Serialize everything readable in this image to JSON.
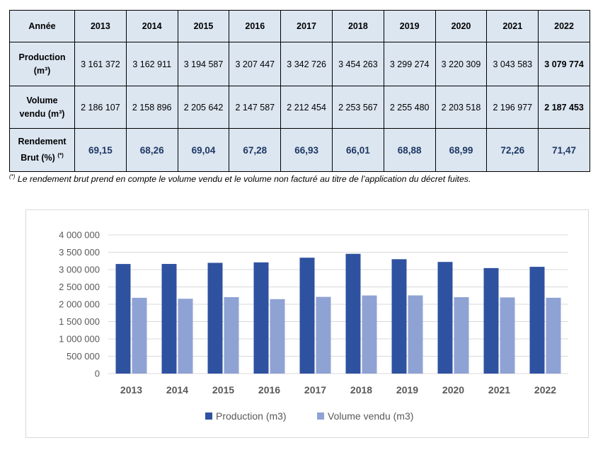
{
  "table": {
    "header_label": "Année",
    "years": [
      "2013",
      "2014",
      "2015",
      "2016",
      "2017",
      "2018",
      "2019",
      "2020",
      "2021",
      "2022"
    ],
    "rows": [
      {
        "label_line1": "Production",
        "label_line2": "(m³)",
        "values": [
          "3 161 372",
          "3 162 911",
          "3 194 587",
          "3 207 447",
          "3 342 726",
          "3 454 263",
          "3 299 274",
          "3 220 309",
          "3 043 583",
          "3 079 774"
        ]
      },
      {
        "label_line1": "Volume",
        "label_line2": "vendu (m³)",
        "values": [
          "2 186 107",
          "2 158 896",
          "2 205 642",
          "2 147 587",
          "2 212 454",
          "2 253 567",
          "2 255 480",
          "2 203 518",
          "2 196 977",
          "2 187 453"
        ]
      },
      {
        "label_line1": "Rendement",
        "label_line2": "Brut (%)",
        "label_sup": "(*)",
        "values": [
          "69,15",
          "68,26",
          "69,04",
          "67,28",
          "66,93",
          "66,01",
          "68,88",
          "68,99",
          "72,26",
          "71,47"
        ]
      }
    ]
  },
  "footnote": {
    "mark": "(*)",
    "text": " Le rendement brut prend en compte le volume vendu et le volume non facturé au titre de l’application du décret fuites."
  },
  "chart_data": {
    "type": "bar",
    "categories": [
      "2013",
      "2014",
      "2015",
      "2016",
      "2017",
      "2018",
      "2019",
      "2020",
      "2021",
      "2022"
    ],
    "series": [
      {
        "name": "Production (m3)",
        "values": [
          3161372,
          3162911,
          3194587,
          3207447,
          3342726,
          3454263,
          3299274,
          3220309,
          3043583,
          3079774
        ]
      },
      {
        "name": "Volume vendu (m3)",
        "values": [
          2186107,
          2158896,
          2205642,
          2147587,
          2212454,
          2253567,
          2255480,
          2203518,
          2196977,
          2187453
        ]
      }
    ],
    "ylim": [
      0,
      4000000
    ],
    "yticks": [
      0,
      500000,
      1000000,
      1500000,
      2000000,
      2500000,
      3000000,
      3500000,
      4000000
    ],
    "ytick_labels": [
      "0",
      "500 000",
      "1 000 000",
      "1 500 000",
      "2 000 000",
      "2 500 000",
      "3 000 000",
      "3 500 000",
      "4 000 000"
    ],
    "grid": true,
    "legend": "bottom",
    "colors": [
      "#2f52a0",
      "#8fa2d4"
    ]
  }
}
